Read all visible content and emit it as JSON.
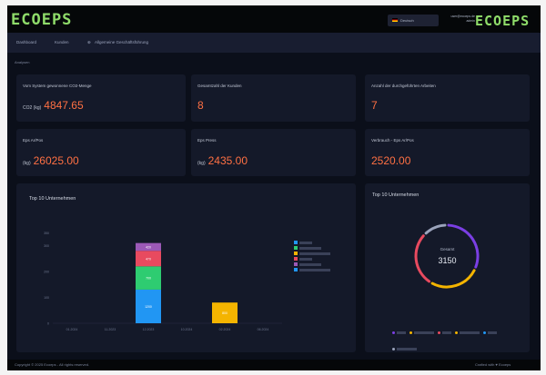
{
  "header": {
    "logo_text": "ECOEPS",
    "language_label": "Deutsch",
    "user_line1": "user@ecoeps.de",
    "user_line2": "admin"
  },
  "nav": {
    "items": [
      "Dashboard",
      "Kunden",
      "Allgemeine Geschäftsführung"
    ]
  },
  "breadcrumb": "Analysen",
  "kpis": [
    {
      "label": "Vom System gewonnene CO2-Menge",
      "unit": "CO2 (kg)",
      "value": "4847.65"
    },
    {
      "label": "Gesamtzahl der Kunden",
      "unit": "",
      "value": "8"
    },
    {
      "label": "Anzahl der durchgeführten Arbeiten",
      "unit": "",
      "value": "7"
    },
    {
      "label": "Eps Ar/Pos",
      "unit": "(kg)",
      "value": "26025.00"
    },
    {
      "label": "Eps Press",
      "unit": "(kg)",
      "value": "2435.00"
    },
    {
      "label": "Verbrauch - Eps Ar/Pos",
      "unit": "",
      "value": "2520.00"
    }
  ],
  "bar_chart": {
    "title": "Top 10 Unternehmen",
    "chart_data": {
      "type": "bar",
      "stacked": true,
      "categories": [
        "01.2024",
        "11.2023",
        "12.2023",
        "10.2024",
        "02.2024",
        "06.2024"
      ],
      "ylim": [
        0,
        400
      ],
      "yticks": [
        0,
        100,
        200,
        300,
        350
      ],
      "series": [
        {
          "name": "",
          "color": "#2196f3",
          "values": [
            0,
            0,
            130,
            0,
            0,
            0
          ]
        },
        {
          "name": "",
          "color": "#2ecc71",
          "values": [
            0,
            0,
            90,
            0,
            0,
            0
          ]
        },
        {
          "name": "",
          "color": "#e84a5f",
          "values": [
            0,
            0,
            60,
            0,
            0,
            0
          ]
        },
        {
          "name": "",
          "color": "#9b59b6",
          "values": [
            0,
            0,
            30,
            0,
            0,
            0
          ]
        },
        {
          "name": "",
          "color": "#f4b400",
          "values": [
            0,
            0,
            0,
            0,
            80,
            0
          ]
        }
      ],
      "data_labels": [
        "1200",
        "700",
        "470",
        "420",
        "800"
      ]
    },
    "legend_colors": [
      "#2196f3",
      "#2ecc71",
      "#f4b400",
      "#e84a5f",
      "#9b59b6",
      "#2196f3"
    ]
  },
  "donut_chart": {
    "title": "Top 10 Unternehmen",
    "center_label": "Gesamt",
    "center_value": "3150",
    "chart_data": {
      "type": "pie",
      "donut": true,
      "values": [
        1000,
        850,
        900,
        400
      ],
      "colors": [
        "#7b3fe4",
        "#f4b400",
        "#e84a5f",
        "#9aa3bb"
      ]
    },
    "legend_colors": [
      "#7b3fe4",
      "#f4b400",
      "#e84a5f",
      "#f4b400",
      "#2196f3",
      "#9aa3bb"
    ]
  },
  "footer": {
    "copyright": "Copyright © 2025 Ecoeps - All rights reserved.",
    "right": "Crafted with ♥ Ecoeps"
  }
}
